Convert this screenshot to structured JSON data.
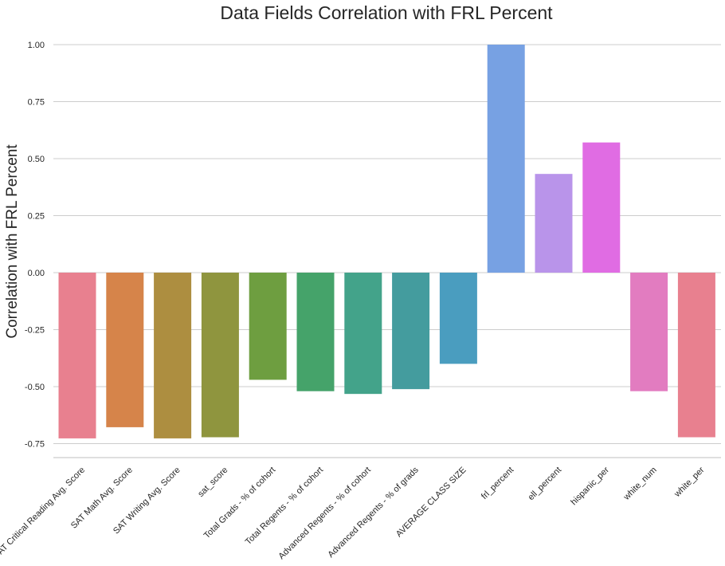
{
  "chart_data": {
    "type": "bar",
    "title": "Data Fields Correlation with FRL Percent",
    "xlabel": "",
    "ylabel": "Correlation with FRL Percent",
    "ylim": [
      -0.8,
      1.05
    ],
    "yticks": [
      "1.00",
      "0.75",
      "0.50",
      "0.25",
      "0.00",
      "-0.25",
      "-0.50",
      "-0.75"
    ],
    "grid": "horizontal",
    "categories": [
      "SAT Critical Reading Avg. Score",
      "SAT Math Avg. Score",
      "SAT Writing Avg. Score",
      "sat_score",
      "Total Grads - % of cohort",
      "Total Regents - % of cohort",
      "Advanced Regents - % of cohort",
      "Advanced Regents - % of grads",
      "AVERAGE CLASS SIZE",
      "frl_percent",
      "ell_percent",
      "hispanic_per",
      "white_num",
      "white_per"
    ],
    "values": [
      -0.727,
      -0.678,
      -0.727,
      -0.722,
      -0.47,
      -0.52,
      -0.532,
      -0.511,
      -0.4,
      1.0,
      0.433,
      0.571,
      -0.52,
      -0.722
    ],
    "colors": [
      "#e8808f",
      "#d6844a",
      "#ad8e40",
      "#8f953e",
      "#6e9e40",
      "#45a36a",
      "#43a38a",
      "#449c9e",
      "#4a9dbf",
      "#77a1e3",
      "#b994ea",
      "#e06ce3",
      "#e27cc0",
      "#e8808f"
    ]
  }
}
